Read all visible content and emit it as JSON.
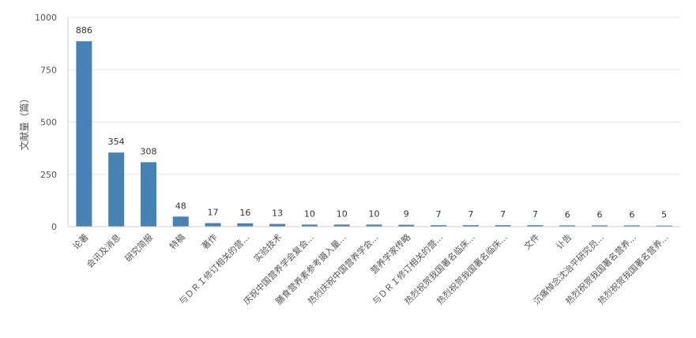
{
  "chart_data": {
    "type": "bar",
    "title": "",
    "xlabel": "",
    "ylabel": "文献量（篇）",
    "ylim": [
      0,
      1000
    ],
    "yticks": [
      0,
      250,
      500,
      750,
      1000
    ],
    "grid": true,
    "legend": "none",
    "bar_color": "#4682b4",
    "categories": [
      "论著",
      "会讯及消息",
      "研究简报",
      "特稿",
      "著作",
      "与ＤＲＩ修订相关的营...",
      "实验技术",
      "庆祝中国营养学会复会...",
      "膳食营养素参考摄入量...",
      "热烈庆祝中国营养学会...",
      "营养学家传略",
      "与ＤＲＩ修订相关的营...",
      "热烈祝贺我国著名临床...",
      "热烈祝贺我国著名临床...",
      "文件",
      "讣告",
      "沉痛悼念沈治平研究员...",
      "热烈祝贺我国著名营养...",
      "热烈祝贺我国著名营养..."
    ],
    "values": [
      886,
      354,
      308,
      48,
      17,
      16,
      13,
      10,
      10,
      10,
      9,
      7,
      7,
      7,
      7,
      6,
      6,
      6,
      5
    ]
  }
}
